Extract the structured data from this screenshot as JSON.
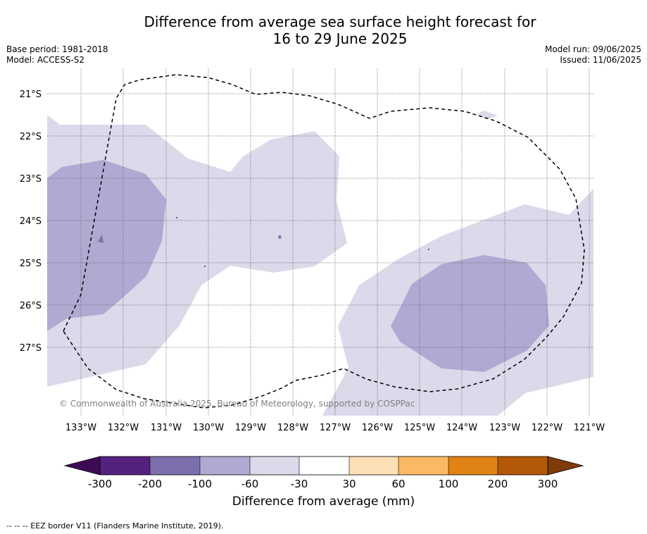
{
  "title_line1": "Difference from average sea surface height forecast for",
  "title_line2": "16 to 29 June 2025",
  "base_period": "Base period: 1981-2018",
  "model": "Model: ACCESS-S2",
  "model_run": "Model run: 09/06/2025",
  "issued": "Issued: 11/06/2025",
  "copyright": "© Commonwealth of Australia 2025, Bureau of Meteorology, supported by COSPPac",
  "latitudes": [
    "21°S",
    "22°S",
    "23°S",
    "24°S",
    "25°S",
    "26°S",
    "27°S"
  ],
  "longitudes": [
    "133°W",
    "132°W",
    "131°W",
    "130°W",
    "129°W",
    "128°W",
    "127°W",
    "126°W",
    "125°W",
    "124°W",
    "123°W",
    "122°W",
    "121°W"
  ],
  "colorbar": {
    "title": "Difference from average (mm)",
    "tick_labels": [
      "-300",
      "-200",
      "-100",
      "-60",
      "-30",
      "30",
      "60",
      "100",
      "200",
      "300"
    ],
    "colors": [
      "#3f0a55",
      "#54217f",
      "#7d6fac",
      "#b0aad2",
      "#dadaeb",
      "#ffffff",
      "#fee0b6",
      "#fdb863",
      "#e08214",
      "#b35806",
      "#7f3b08"
    ]
  },
  "eez_note": "--  --  -- EEZ border V11 (Flanders Marine Institute, 2019)."
}
